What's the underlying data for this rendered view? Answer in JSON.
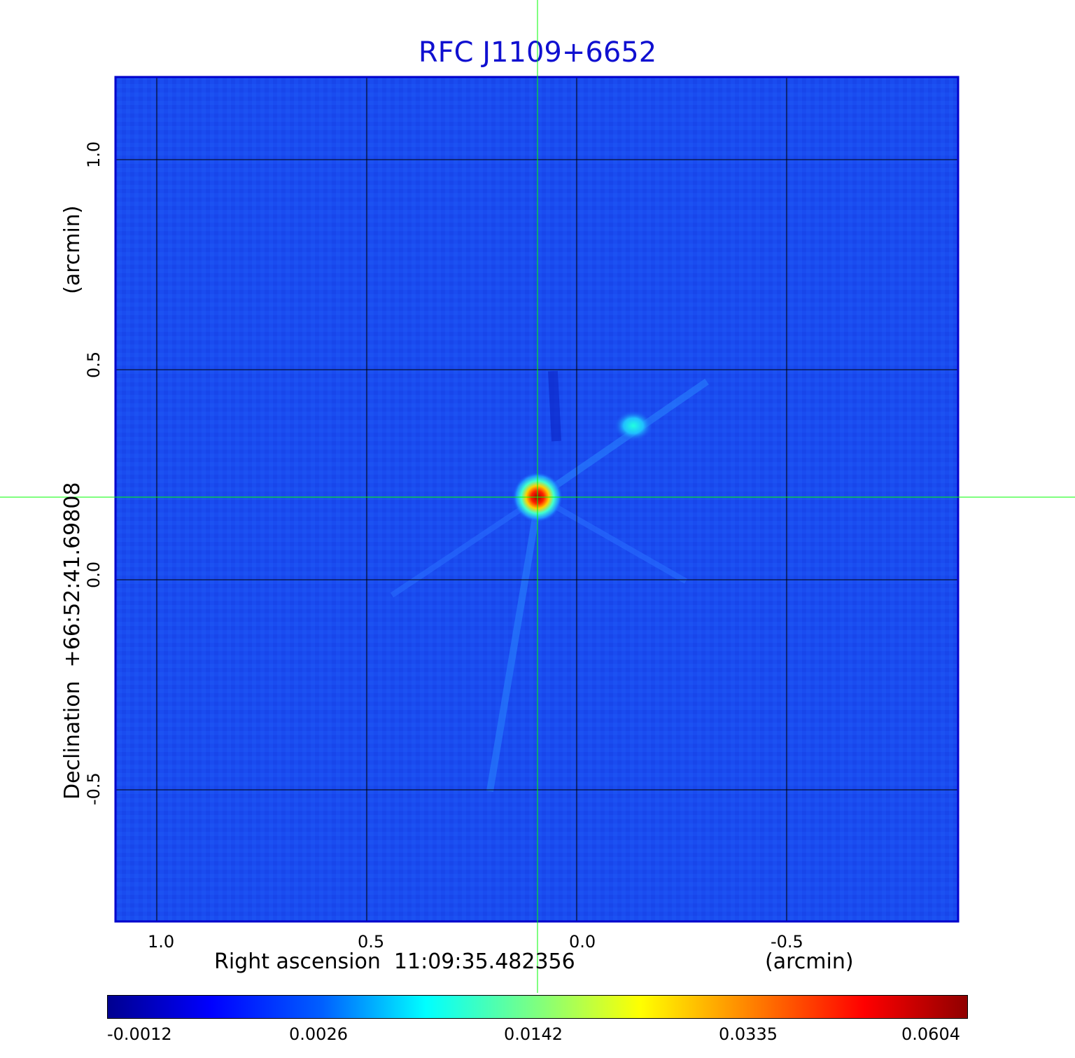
{
  "title": "RFC J1109+6652",
  "x_axis": {
    "label": "Right ascension  11:09:35.482356",
    "unit": "(arcmin)",
    "ticks": [
      "1.0",
      "0.5",
      "0.0",
      "-0.5"
    ]
  },
  "y_axis": {
    "label": "Declination  +66:52:41.69808",
    "unit": "(arcmin)",
    "ticks": [
      "1.0",
      "0.5",
      "0.0",
      "-0.5"
    ]
  },
  "colorbar": {
    "ticks": [
      "-0.0012",
      "0.0026",
      "0.0142",
      "0.0335",
      "0.0604"
    ]
  },
  "colors": {
    "background_map": "#1a4cf0",
    "frame": "#0000cc",
    "crosshair": "#00ff00",
    "title": "#1010d0"
  }
}
